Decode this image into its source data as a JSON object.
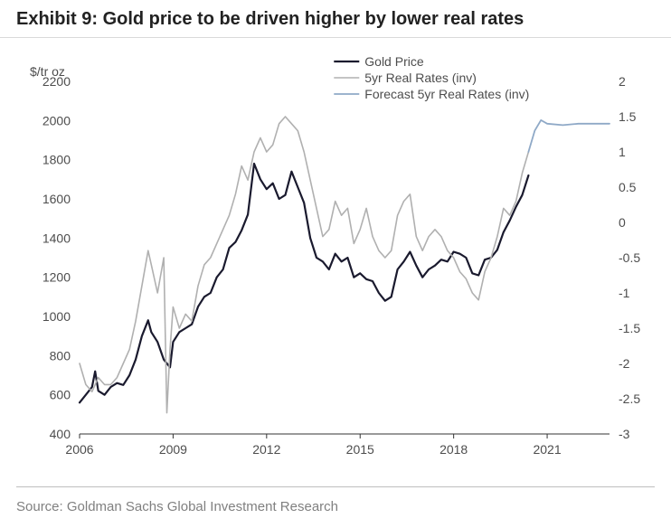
{
  "title": "Exhibit 9: Gold price to be driven higher by lower real rates",
  "source": "Source: Goldman Sachs Global Investment Research",
  "chart": {
    "type": "line",
    "background_color": "#ffffff",
    "font_family": "Arial",
    "title_fontsize": 20,
    "label_fontsize": 14,
    "y_left": {
      "label": "$/tr oz",
      "min": 400,
      "max": 2200,
      "tick_step": 200,
      "ticks": [
        400,
        600,
        800,
        1000,
        1200,
        1400,
        1600,
        1800,
        2000,
        2200
      ]
    },
    "y_right": {
      "min": -3,
      "max": 2,
      "tick_step": 0.5,
      "ticks": [
        -3,
        -2.5,
        -2,
        -1.5,
        -1,
        -0.5,
        0,
        0.5,
        1,
        1.5,
        2
      ]
    },
    "x_axis": {
      "min": 2006,
      "max": 2023,
      "ticks": [
        2006,
        2009,
        2012,
        2015,
        2018,
        2021
      ]
    },
    "legend": {
      "position": "top-center",
      "items": [
        {
          "label": "Gold Price",
          "color": "#1a1a2e",
          "width": 2.2
        },
        {
          "label": "5yr Real Rates (inv)",
          "color": "#b0b0b0",
          "width": 1.6
        },
        {
          "label": "Forecast 5yr Real Rates (inv)",
          "color": "#8fa9c7",
          "width": 1.8
        }
      ]
    },
    "series": [
      {
        "name": "gold_price",
        "color": "#1a1a2e",
        "width": 2.2,
        "axis": "left",
        "points": [
          [
            2006.0,
            560
          ],
          [
            2006.2,
            600
          ],
          [
            2006.4,
            640
          ],
          [
            2006.5,
            720
          ],
          [
            2006.6,
            620
          ],
          [
            2006.8,
            600
          ],
          [
            2007.0,
            640
          ],
          [
            2007.2,
            660
          ],
          [
            2007.4,
            650
          ],
          [
            2007.6,
            700
          ],
          [
            2007.8,
            780
          ],
          [
            2008.0,
            900
          ],
          [
            2008.2,
            980
          ],
          [
            2008.3,
            920
          ],
          [
            2008.5,
            870
          ],
          [
            2008.7,
            780
          ],
          [
            2008.9,
            740
          ],
          [
            2009.0,
            870
          ],
          [
            2009.2,
            920
          ],
          [
            2009.4,
            940
          ],
          [
            2009.6,
            960
          ],
          [
            2009.8,
            1050
          ],
          [
            2010.0,
            1100
          ],
          [
            2010.2,
            1120
          ],
          [
            2010.4,
            1200
          ],
          [
            2010.6,
            1240
          ],
          [
            2010.8,
            1350
          ],
          [
            2011.0,
            1380
          ],
          [
            2011.2,
            1440
          ],
          [
            2011.4,
            1520
          ],
          [
            2011.6,
            1780
          ],
          [
            2011.8,
            1700
          ],
          [
            2012.0,
            1650
          ],
          [
            2012.2,
            1680
          ],
          [
            2012.4,
            1600
          ],
          [
            2012.6,
            1620
          ],
          [
            2012.8,
            1740
          ],
          [
            2013.0,
            1660
          ],
          [
            2013.2,
            1580
          ],
          [
            2013.4,
            1400
          ],
          [
            2013.6,
            1300
          ],
          [
            2013.8,
            1280
          ],
          [
            2014.0,
            1240
          ],
          [
            2014.2,
            1320
          ],
          [
            2014.4,
            1280
          ],
          [
            2014.6,
            1300
          ],
          [
            2014.8,
            1200
          ],
          [
            2015.0,
            1220
          ],
          [
            2015.2,
            1190
          ],
          [
            2015.4,
            1180
          ],
          [
            2015.6,
            1120
          ],
          [
            2015.8,
            1080
          ],
          [
            2016.0,
            1100
          ],
          [
            2016.2,
            1240
          ],
          [
            2016.4,
            1280
          ],
          [
            2016.6,
            1330
          ],
          [
            2016.8,
            1260
          ],
          [
            2017.0,
            1200
          ],
          [
            2017.2,
            1240
          ],
          [
            2017.4,
            1260
          ],
          [
            2017.6,
            1290
          ],
          [
            2017.8,
            1280
          ],
          [
            2018.0,
            1330
          ],
          [
            2018.2,
            1320
          ],
          [
            2018.4,
            1300
          ],
          [
            2018.6,
            1220
          ],
          [
            2018.8,
            1210
          ],
          [
            2019.0,
            1290
          ],
          [
            2019.2,
            1300
          ],
          [
            2019.4,
            1340
          ],
          [
            2019.6,
            1430
          ],
          [
            2019.8,
            1490
          ],
          [
            2020.0,
            1560
          ],
          [
            2020.2,
            1620
          ],
          [
            2020.4,
            1720
          ]
        ]
      },
      {
        "name": "real_rates_inv",
        "color": "#b0b0b0",
        "width": 1.6,
        "axis": "right",
        "points": [
          [
            2006.0,
            -2.0
          ],
          [
            2006.2,
            -2.3
          ],
          [
            2006.4,
            -2.4
          ],
          [
            2006.6,
            -2.2
          ],
          [
            2006.8,
            -2.3
          ],
          [
            2007.0,
            -2.3
          ],
          [
            2007.2,
            -2.2
          ],
          [
            2007.4,
            -2.0
          ],
          [
            2007.6,
            -1.8
          ],
          [
            2007.8,
            -1.4
          ],
          [
            2008.0,
            -0.9
          ],
          [
            2008.2,
            -0.4
          ],
          [
            2008.3,
            -0.6
          ],
          [
            2008.5,
            -1.0
          ],
          [
            2008.7,
            -0.5
          ],
          [
            2008.8,
            -2.7
          ],
          [
            2008.9,
            -1.8
          ],
          [
            2009.0,
            -1.2
          ],
          [
            2009.2,
            -1.5
          ],
          [
            2009.4,
            -1.3
          ],
          [
            2009.6,
            -1.4
          ],
          [
            2009.8,
            -0.9
          ],
          [
            2010.0,
            -0.6
          ],
          [
            2010.2,
            -0.5
          ],
          [
            2010.4,
            -0.3
          ],
          [
            2010.6,
            -0.1
          ],
          [
            2010.8,
            0.1
          ],
          [
            2011.0,
            0.4
          ],
          [
            2011.2,
            0.8
          ],
          [
            2011.4,
            0.6
          ],
          [
            2011.6,
            1.0
          ],
          [
            2011.8,
            1.2
          ],
          [
            2012.0,
            1.0
          ],
          [
            2012.2,
            1.1
          ],
          [
            2012.4,
            1.4
          ],
          [
            2012.6,
            1.5
          ],
          [
            2012.8,
            1.4
          ],
          [
            2013.0,
            1.3
          ],
          [
            2013.2,
            1.0
          ],
          [
            2013.4,
            0.6
          ],
          [
            2013.6,
            0.2
          ],
          [
            2013.8,
            -0.2
          ],
          [
            2014.0,
            -0.1
          ],
          [
            2014.2,
            0.3
          ],
          [
            2014.4,
            0.1
          ],
          [
            2014.6,
            0.2
          ],
          [
            2014.8,
            -0.3
          ],
          [
            2015.0,
            -0.1
          ],
          [
            2015.2,
            0.2
          ],
          [
            2015.4,
            -0.2
          ],
          [
            2015.6,
            -0.4
          ],
          [
            2015.8,
            -0.5
          ],
          [
            2016.0,
            -0.4
          ],
          [
            2016.2,
            0.1
          ],
          [
            2016.4,
            0.3
          ],
          [
            2016.6,
            0.4
          ],
          [
            2016.8,
            -0.2
          ],
          [
            2017.0,
            -0.4
          ],
          [
            2017.2,
            -0.2
          ],
          [
            2017.4,
            -0.1
          ],
          [
            2017.6,
            -0.2
          ],
          [
            2017.8,
            -0.4
          ],
          [
            2018.0,
            -0.5
          ],
          [
            2018.2,
            -0.7
          ],
          [
            2018.4,
            -0.8
          ],
          [
            2018.6,
            -1.0
          ],
          [
            2018.8,
            -1.1
          ],
          [
            2019.0,
            -0.7
          ],
          [
            2019.2,
            -0.5
          ],
          [
            2019.4,
            -0.2
          ],
          [
            2019.6,
            0.2
          ],
          [
            2019.8,
            0.1
          ],
          [
            2020.0,
            0.3
          ],
          [
            2020.2,
            0.7
          ],
          [
            2020.4,
            1.0
          ]
        ]
      },
      {
        "name": "forecast_real_rates_inv",
        "color": "#8fa9c7",
        "width": 1.8,
        "axis": "right",
        "points": [
          [
            2020.4,
            1.0
          ],
          [
            2020.6,
            1.3
          ],
          [
            2020.8,
            1.45
          ],
          [
            2021.0,
            1.4
          ],
          [
            2021.5,
            1.38
          ],
          [
            2022.0,
            1.4
          ],
          [
            2022.5,
            1.4
          ],
          [
            2023.0,
            1.4
          ]
        ]
      }
    ]
  }
}
